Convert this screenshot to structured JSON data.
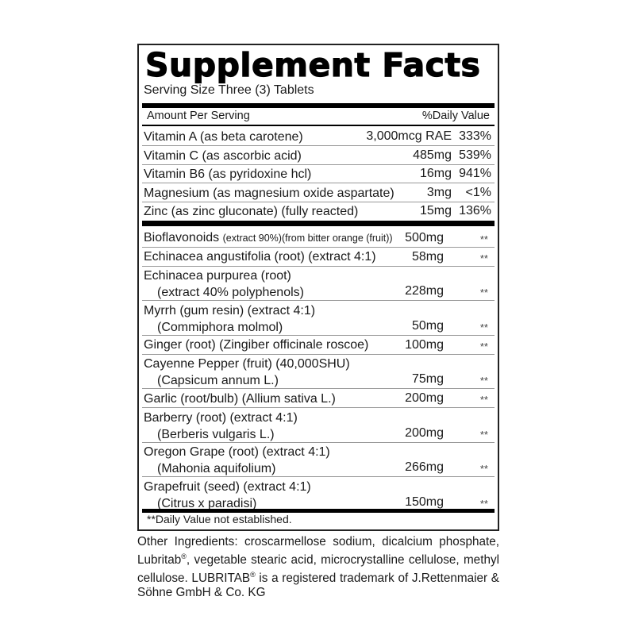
{
  "title": "Supplement Facts",
  "serving_size": "Serving Size Three  (3) Tablets",
  "header": {
    "amount": "Amount Per Serving",
    "dv": "%Daily Value"
  },
  "vitamins": [
    {
      "name": "Vitamin A (as beta carotene)",
      "amount": "3,000mcg RAE",
      "dv": "333%"
    },
    {
      "name": "Vitamin C (as ascorbic acid)",
      "amount": "485mg",
      "dv": "539%"
    },
    {
      "name": "Vitamin B6 (as pyridoxine hcl)",
      "amount": "16mg",
      "dv": "941%"
    },
    {
      "name": "Magnesium (as magnesium oxide aspartate)",
      "amount": "3mg",
      "dv": "<1%"
    },
    {
      "name": "Zinc (as zinc gluconate) (fully reacted)",
      "amount": "15mg",
      "dv": "136%"
    }
  ],
  "ingredients": [
    {
      "name": "Bioflavonoids",
      "detail": "(extract 90%)(from bitter orange (fruit))",
      "amount": "500mg",
      "dv": "**"
    },
    {
      "name": "Echinacea angustifolia (root) (extract 4:1)",
      "amount": "58mg",
      "dv": "**"
    },
    {
      "name": "Echinacea purpurea (root)",
      "name2": "(extract 40% polyphenols)",
      "amount": "228mg",
      "dv": "**"
    },
    {
      "name": "Myrrh (gum resin) (extract 4:1)",
      "name2": "(Commiphora molmol)",
      "amount": "50mg",
      "dv": "**"
    },
    {
      "name": "Ginger (root) (Zingiber officinale roscoe)",
      "amount": "100mg",
      "dv": "**"
    },
    {
      "name": "Cayenne Pepper (fruit) (40,000SHU)",
      "name2": "(Capsicum annum L.)",
      "amount": "75mg",
      "dv": "**"
    },
    {
      "name": "Garlic (root/bulb) (Allium sativa L.)",
      "amount": "200mg",
      "dv": "**"
    },
    {
      "name": "Barberry (root) (extract 4:1)",
      "name2": "(Berberis vulgaris L.)",
      "amount": "200mg",
      "dv": "**"
    },
    {
      "name": "Oregon Grape (root) (extract 4:1)",
      "name2": "(Mahonia aquifolium)",
      "amount": "266mg",
      "dv": "**"
    },
    {
      "name": "Grapefruit (seed) (extract 4:1)",
      "name2": "(Citrus x paradisi)",
      "amount": "150mg",
      "dv": "**"
    }
  ],
  "footnote": "**Daily Value not established.",
  "other_ingredients": {
    "p1": "Other Ingredients: croscarmellose sodium, dicalcium phosphate, Lubritab",
    "reg": "®",
    "p2": ", vegetable stearic acid, microcrystalline cellulose, methyl cellulose. LUBRITAB",
    "p3": " is a registered trademark of J.Ret­tenmaier & Söhne GmbH & Co. KG"
  }
}
